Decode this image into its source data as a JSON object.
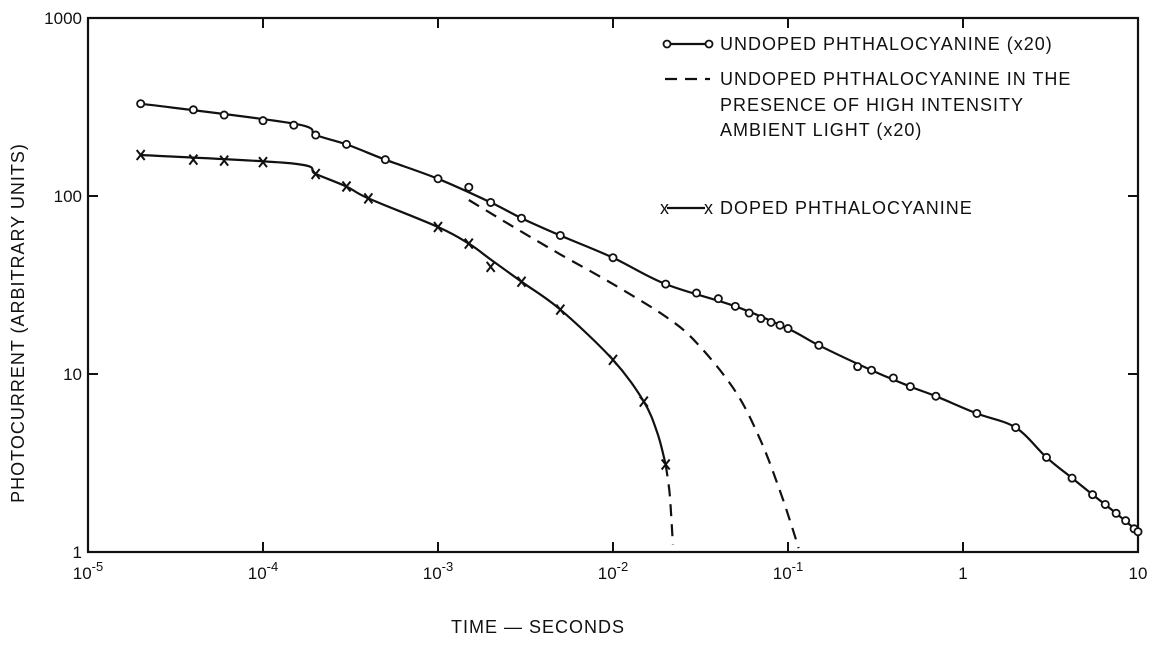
{
  "chart_data": {
    "type": "line",
    "title": "",
    "xlabel": "TIME — SECONDS",
    "ylabel": "PHOTOCURRENT  (ARBITRARY UNITS)",
    "xscale": "log",
    "yscale": "log",
    "xlim": [
      1e-05,
      10
    ],
    "ylim": [
      1,
      1000
    ],
    "grid": false,
    "legend_position": "top-right",
    "x_tick_labels": [
      {
        "value": 1e-05,
        "base": "10",
        "exp": "-5"
      },
      {
        "value": 0.0001,
        "base": "10",
        "exp": "-4"
      },
      {
        "value": 0.001,
        "base": "10",
        "exp": "-3"
      },
      {
        "value": 0.01,
        "base": "10",
        "exp": "-2"
      },
      {
        "value": 0.1,
        "base": "10",
        "exp": "-1"
      },
      {
        "value": 1,
        "base": "1",
        "exp": ""
      },
      {
        "value": 10,
        "base": "10",
        "exp": ""
      }
    ],
    "y_tick_labels": [
      {
        "value": 1,
        "label": "1"
      },
      {
        "value": 10,
        "label": "10"
      },
      {
        "value": 100,
        "label": "100"
      },
      {
        "value": 1000,
        "label": "1000"
      }
    ],
    "series": [
      {
        "name": "UNDOPED  PHTHALOCYANINE  (x20)",
        "marker": "circle",
        "style": "solid",
        "points": [
          [
            2e-05,
            330
          ],
          [
            4e-05,
            305
          ],
          [
            6e-05,
            285
          ],
          [
            0.0001,
            265
          ],
          [
            0.00015,
            250
          ],
          [
            0.0002,
            220
          ],
          [
            0.0003,
            195
          ],
          [
            0.0005,
            160
          ],
          [
            0.001,
            125
          ],
          [
            0.0015,
            112
          ],
          [
            0.002,
            92
          ],
          [
            0.003,
            75
          ],
          [
            0.005,
            60
          ],
          [
            0.01,
            45
          ],
          [
            0.02,
            32
          ],
          [
            0.03,
            28.5
          ],
          [
            0.04,
            26.5
          ],
          [
            0.05,
            24
          ],
          [
            0.06,
            22
          ],
          [
            0.07,
            20.5
          ],
          [
            0.08,
            19.5
          ],
          [
            0.09,
            18.8
          ],
          [
            0.1,
            18
          ],
          [
            0.15,
            14.5
          ],
          [
            0.25,
            11
          ],
          [
            0.3,
            10.5
          ],
          [
            0.4,
            9.5
          ],
          [
            0.5,
            8.5
          ],
          [
            0.7,
            7.5
          ],
          [
            1.2,
            6
          ],
          [
            2,
            5
          ],
          [
            3,
            3.4
          ],
          [
            4.2,
            2.6
          ],
          [
            5.5,
            2.1
          ],
          [
            6.5,
            1.85
          ],
          [
            7.5,
            1.65
          ],
          [
            8.5,
            1.5
          ],
          [
            9.5,
            1.35
          ],
          [
            10,
            1.3
          ]
        ],
        "line": [
          [
            2e-05,
            330
          ],
          [
            0.00015,
            255
          ],
          [
            0.0002,
            220
          ],
          [
            0.0003,
            195
          ],
          [
            0.0005,
            160
          ],
          [
            0.001,
            125
          ],
          [
            0.002,
            92
          ],
          [
            0.003,
            75
          ],
          [
            0.005,
            60
          ],
          [
            0.01,
            45
          ],
          [
            0.02,
            32
          ],
          [
            0.05,
            24
          ],
          [
            0.1,
            18
          ],
          [
            0.15,
            14.5
          ],
          [
            0.3,
            10.5
          ],
          [
            0.5,
            8.5
          ],
          [
            0.7,
            7.5
          ],
          [
            1.2,
            6
          ],
          [
            2,
            5
          ],
          [
            3,
            3.4
          ],
          [
            4.2,
            2.6
          ],
          [
            5.5,
            2.1
          ],
          [
            7.5,
            1.65
          ],
          [
            10,
            1.3
          ]
        ]
      },
      {
        "name": "UNDOPED  PHTHALOCYANINE  IN THE PRESENCE  OF  HIGH  INTENSITY AMBIENT  LIGHT  (x20)",
        "marker": "none",
        "style": "dashed",
        "points": [],
        "line": [
          [
            0.0015,
            95
          ],
          [
            0.002,
            80
          ],
          [
            0.003,
            63
          ],
          [
            0.005,
            47
          ],
          [
            0.01,
            32
          ],
          [
            0.02,
            21
          ],
          [
            0.03,
            15
          ],
          [
            0.05,
            8
          ],
          [
            0.07,
            4.2
          ],
          [
            0.09,
            2.2
          ],
          [
            0.105,
            1.4
          ],
          [
            0.115,
            1.05
          ]
        ]
      },
      {
        "name": "DOPED  PHTHALOCYANINE",
        "marker": "x",
        "style": "solid",
        "points": [
          [
            2e-05,
            170
          ],
          [
            4e-05,
            160
          ],
          [
            6e-05,
            158
          ],
          [
            0.0001,
            155
          ],
          [
            0.0002,
            133
          ],
          [
            0.0003,
            113
          ],
          [
            0.0004,
            97
          ],
          [
            0.001,
            67
          ],
          [
            0.0015,
            54
          ],
          [
            0.002,
            40
          ],
          [
            0.003,
            33
          ],
          [
            0.005,
            23
          ],
          [
            0.01,
            12
          ],
          [
            0.015,
            7
          ],
          [
            0.02,
            3.1
          ]
        ],
        "line": [
          [
            2e-05,
            170
          ],
          [
            0.00015,
            152
          ],
          [
            0.0002,
            133
          ],
          [
            0.0003,
            113
          ],
          [
            0.0004,
            97
          ],
          [
            0.001,
            67
          ],
          [
            0.0015,
            54
          ],
          [
            0.002,
            44
          ],
          [
            0.003,
            33
          ],
          [
            0.005,
            23
          ],
          [
            0.01,
            12
          ],
          [
            0.015,
            7
          ],
          [
            0.018,
            4.6
          ],
          [
            0.02,
            3.1
          ]
        ],
        "dashed_tail": [
          [
            0.02,
            3.1
          ],
          [
            0.021,
            2.2
          ],
          [
            0.0215,
            1.6
          ],
          [
            0.022,
            1.1
          ]
        ]
      }
    ],
    "legend": {
      "entries": [
        {
          "label": "UNDOPED  PHTHALOCYANINE  (x20)",
          "symbol": "circle-line"
        },
        {
          "label_lines": [
            "UNDOPED  PHTHALOCYANINE  IN THE",
            "PRESENCE  OF  HIGH  INTENSITY",
            "AMBIENT  LIGHT  (x20)"
          ],
          "symbol": "dashed-line"
        },
        {
          "label": "DOPED  PHTHALOCYANINE",
          "symbol": "x-line"
        }
      ]
    }
  }
}
